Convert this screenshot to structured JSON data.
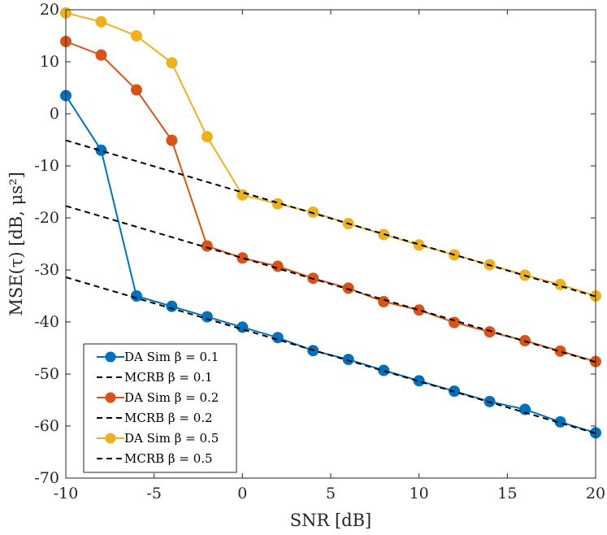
{
  "chart_data": {
    "type": "line",
    "xlabel": "SNR [dB]",
    "ylabel": "MSE(τ) [dB, μs²]",
    "xlim": [
      -10,
      20
    ],
    "ylim": [
      -70,
      20
    ],
    "xticks": [
      -10,
      -5,
      0,
      5,
      10,
      15,
      20
    ],
    "xtick_labels": [
      "-10",
      "-5",
      "0",
      "5",
      "10",
      "15",
      "20"
    ],
    "yticks": [
      20,
      10,
      0,
      -10,
      -20,
      -30,
      -40,
      -50,
      -60,
      -70
    ],
    "ytick_labels": [
      "20",
      "10",
      "0",
      "-10",
      "-20",
      "-30",
      "-40",
      "-50",
      "-60",
      "-70"
    ],
    "grid": false,
    "legend_position": "bottom-left",
    "series": [
      {
        "name": "DA Sim β = 0.1",
        "style": "line-marker",
        "color": "#0072BD",
        "x": [
          -10,
          -8,
          -6,
          -4,
          -2,
          0,
          2,
          4,
          6,
          8,
          10,
          12,
          14,
          16,
          18,
          20
        ],
        "y": [
          3.5,
          -7,
          -35,
          -37,
          -39,
          -41,
          -43,
          -45.5,
          -47.2,
          -49.3,
          -51.3,
          -53.3,
          -55.3,
          -56.8,
          -59.2,
          -61.3
        ]
      },
      {
        "name": "MCRB β = 0.1",
        "style": "dashed",
        "color": "#000000",
        "x": [
          -10,
          20
        ],
        "y": [
          -31.4,
          -61.4
        ]
      },
      {
        "name": "DA Sim β = 0.2",
        "style": "line-marker",
        "color": "#D95319",
        "x": [
          -10,
          -8,
          -6,
          -4,
          -2,
          0,
          2,
          4,
          6,
          8,
          10,
          12,
          14,
          16,
          18,
          20
        ],
        "y": [
          13.9,
          11.3,
          4.6,
          -5.1,
          -25.4,
          -27.7,
          -29.3,
          -31.6,
          -33.5,
          -36.1,
          -37.7,
          -40.1,
          -41.9,
          -43.6,
          -45.6,
          -47.6
        ]
      },
      {
        "name": "MCRB β = 0.2",
        "style": "dashed",
        "color": "#000000",
        "x": [
          -10,
          20
        ],
        "y": [
          -17.7,
          -47.7
        ]
      },
      {
        "name": "DA Sim β = 0.5",
        "style": "line-marker",
        "color": "#EDB120",
        "x": [
          -10,
          -8,
          -6,
          -4,
          -2,
          0,
          2,
          4,
          6,
          8,
          10,
          12,
          14,
          16,
          18,
          20
        ],
        "y": [
          19.4,
          17.7,
          15,
          9.8,
          -4.4,
          -15.6,
          -17.3,
          -18.9,
          -21.1,
          -23.2,
          -25.2,
          -27.1,
          -29,
          -31,
          -32.8,
          -35
        ]
      },
      {
        "name": "MCRB β = 0.5",
        "style": "dashed",
        "color": "#000000",
        "x": [
          -10,
          20
        ],
        "y": [
          -5.1,
          -35.1
        ]
      }
    ]
  }
}
